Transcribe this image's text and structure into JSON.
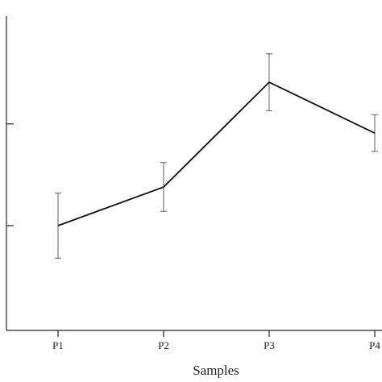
{
  "chart_data": {
    "type": "line",
    "categories": [
      "P1",
      "P2",
      "P3",
      "P4"
    ],
    "series": [
      {
        "values": [
          1.0,
          1.38,
          2.41,
          1.91
        ],
        "error": [
          0.32,
          0.24,
          0.28,
          0.18
        ]
      }
    ],
    "xlabel": "Samples",
    "ylabel": "",
    "ylim": [
      -0.03,
      3.06
    ],
    "y_ticks": [
      1,
      2
    ],
    "grid": false,
    "colors": {
      "line": "#111111",
      "error_bar": "#777777",
      "axis": "#222222"
    }
  }
}
